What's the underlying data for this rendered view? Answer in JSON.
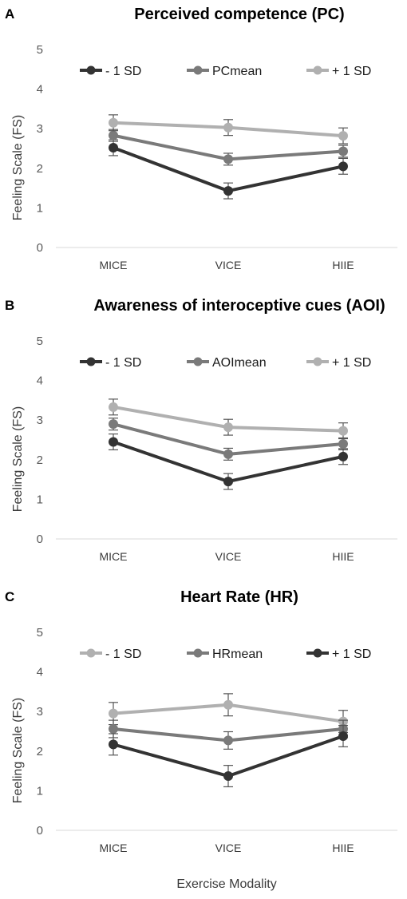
{
  "figure": {
    "xlabel": "Exercise Modality"
  },
  "chart_data": [
    {
      "type": "line",
      "panel": "A",
      "title": "Perceived competence (PC)",
      "ylabel": "Feeling Scale (FS)",
      "xlabel": "",
      "categories": [
        "MICE",
        "VICE",
        "HIIE"
      ],
      "ylim": [
        0,
        5
      ],
      "yticks": [
        0,
        1,
        2,
        3,
        4,
        5
      ],
      "grid": false,
      "legend_position": "top",
      "series": [
        {
          "name": "- 1 SD",
          "color": "#333333",
          "values": [
            2.52,
            1.43,
            2.05
          ],
          "errors": [
            0.2,
            0.2,
            0.2
          ]
        },
        {
          "name": "PCmean",
          "color": "#7a7a7a",
          "values": [
            2.83,
            2.23,
            2.43
          ],
          "errors": [
            0.15,
            0.15,
            0.15
          ]
        },
        {
          "name": "+ 1 SD",
          "color": "#b0b0b0",
          "values": [
            3.15,
            3.03,
            2.82
          ],
          "errors": [
            0.2,
            0.2,
            0.2
          ]
        }
      ]
    },
    {
      "type": "line",
      "panel": "B",
      "title": "Awareness of interoceptive cues (AOI)",
      "ylabel": "Feeling Scale (FS)",
      "xlabel": "",
      "categories": [
        "MICE",
        "VICE",
        "HIIE"
      ],
      "ylim": [
        0,
        5
      ],
      "yticks": [
        0,
        1,
        2,
        3,
        4,
        5
      ],
      "grid": false,
      "legend_position": "top",
      "series": [
        {
          "name": "- 1 SD",
          "color": "#333333",
          "values": [
            2.45,
            1.45,
            2.08
          ],
          "errors": [
            0.2,
            0.2,
            0.2
          ]
        },
        {
          "name": "AOImean",
          "color": "#7a7a7a",
          "values": [
            2.9,
            2.14,
            2.4
          ],
          "errors": [
            0.15,
            0.15,
            0.15
          ]
        },
        {
          "name": "+ 1 SD",
          "color": "#b0b0b0",
          "values": [
            3.33,
            2.82,
            2.73
          ],
          "errors": [
            0.2,
            0.2,
            0.2
          ]
        }
      ]
    },
    {
      "type": "line",
      "panel": "C",
      "title": "Heart Rate (HR)",
      "ylabel": "Feeling Scale (FS)",
      "xlabel": "",
      "categories": [
        "MICE",
        "VICE",
        "HIIE"
      ],
      "ylim": [
        0,
        5
      ],
      "yticks": [
        0,
        1,
        2,
        3,
        4,
        5
      ],
      "grid": false,
      "legend_position": "top",
      "series": [
        {
          "name": "- 1 SD",
          "color": "#b0b0b0",
          "values": [
            2.95,
            3.17,
            2.75
          ],
          "errors": [
            0.28,
            0.28,
            0.28
          ]
        },
        {
          "name": "HRmean",
          "color": "#7a7a7a",
          "values": [
            2.56,
            2.27,
            2.56
          ],
          "errors": [
            0.22,
            0.22,
            0.22
          ]
        },
        {
          "name": "+ 1 SD",
          "color": "#333333",
          "values": [
            2.17,
            1.37,
            2.38
          ],
          "errors": [
            0.27,
            0.27,
            0.27
          ]
        }
      ]
    }
  ]
}
